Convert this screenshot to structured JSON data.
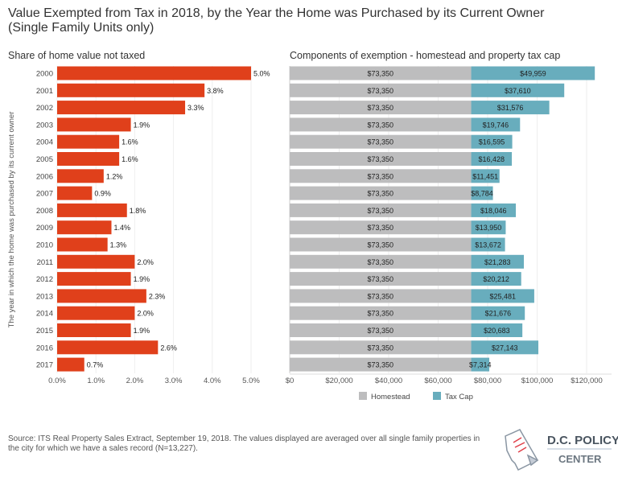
{
  "title_line1": "Value Exempted from Tax in 2018, by the Year the Home was Purchased by its Current Owner",
  "title_line2": "(Single Family Units only)",
  "footer": "Source: ITS Real Property Sales Extract, September 19, 2018. The values displayed are averaged over all single family properties in the city for which we have a sales record (N=13,227).",
  "logo": {
    "line1": "D.C. POLICY",
    "line2": "CENTER"
  },
  "colors": {
    "share": "#e0401b",
    "homestead": "#bdbdbe",
    "taxcap": "#68adbd"
  },
  "chart_data": [
    {
      "type": "bar",
      "orientation": "horizontal",
      "title": "Share of home value not taxed",
      "ylabel": "The year in which the home was purchased by its current owner",
      "categories": [
        "2000",
        "2001",
        "2002",
        "2003",
        "2004",
        "2005",
        "2006",
        "2007",
        "2008",
        "2009",
        "2010",
        "2011",
        "2012",
        "2013",
        "2014",
        "2015",
        "2016",
        "2017"
      ],
      "values": [
        5.0,
        3.8,
        3.3,
        1.9,
        1.6,
        1.6,
        1.2,
        0.9,
        1.8,
        1.4,
        1.3,
        2.0,
        1.9,
        2.3,
        2.0,
        1.9,
        2.6,
        0.7
      ],
      "data_labels": [
        "5.0%",
        "3.8%",
        "3.3%",
        "1.9%",
        "1.6%",
        "1.6%",
        "1.2%",
        "0.9%",
        "1.8%",
        "1.4%",
        "1.3%",
        "2.0%",
        "1.9%",
        "2.3%",
        "2.0%",
        "1.9%",
        "2.6%",
        "0.7%"
      ],
      "xticks": [
        "0.0%",
        "1.0%",
        "2.0%",
        "3.0%",
        "4.0%",
        "5.0%"
      ],
      "xlim": [
        0,
        5.0
      ],
      "grid": true
    },
    {
      "type": "bar",
      "orientation": "horizontal",
      "stacked": true,
      "title": "Components of exemption - homestead and property tax cap",
      "categories": [
        "2000",
        "2001",
        "2002",
        "2003",
        "2004",
        "2005",
        "2006",
        "2007",
        "2008",
        "2009",
        "2010",
        "2011",
        "2012",
        "2013",
        "2014",
        "2015",
        "2016",
        "2017"
      ],
      "series": [
        {
          "name": "Homestead",
          "values": [
            73350,
            73350,
            73350,
            73350,
            73350,
            73350,
            73350,
            73350,
            73350,
            73350,
            73350,
            73350,
            73350,
            73350,
            73350,
            73350,
            73350,
            73350
          ],
          "data_labels": [
            "$73,350",
            "$73,350",
            "$73,350",
            "$73,350",
            "$73,350",
            "$73,350",
            "$73,350",
            "$73,350",
            "$73,350",
            "$73,350",
            "$73,350",
            "$73,350",
            "$73,350",
            "$73,350",
            "$73,350",
            "$73,350",
            "$73,350",
            "$73,350"
          ]
        },
        {
          "name": "Tax Cap",
          "values": [
            49959,
            37610,
            31576,
            19746,
            16595,
            16428,
            11451,
            8784,
            18046,
            13950,
            13672,
            21283,
            20212,
            25481,
            21676,
            20683,
            27143,
            7314
          ],
          "data_labels": [
            "$49,959",
            "$37,610",
            "$31,576",
            "$19,746",
            "$16,595",
            "$16,428",
            "$11,451",
            "$8,784",
            "$18,046",
            "$13,950",
            "$13,672",
            "$21,283",
            "$20,212",
            "$25,481",
            "$21,676",
            "$20,683",
            "$27,143",
            "$7,314"
          ]
        }
      ],
      "xticks": [
        "$0",
        "$20,000",
        "$40,000",
        "$60,000",
        "$80,000",
        "$100,000",
        "$120,000"
      ],
      "xlim": [
        0,
        120000
      ],
      "grid": true,
      "legend": "bottom"
    }
  ]
}
